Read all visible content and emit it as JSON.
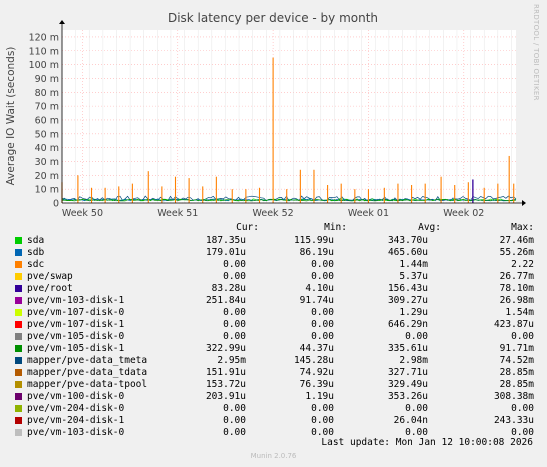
{
  "chart_data": {
    "type": "line",
    "title": "Disk latency per device - by month",
    "ylabel": "Average IO Wait (seconds)",
    "ylim": [
      0,
      0.125
    ],
    "y_ticks": [
      0,
      0.01,
      0.02,
      0.03,
      0.04,
      0.05,
      0.06,
      0.07,
      0.08,
      0.09,
      0.1,
      0.11,
      0.12
    ],
    "y_tick_labels": [
      "0",
      "10 m",
      "20 m",
      "30 m",
      "40 m",
      "50 m",
      "60 m",
      "70 m",
      "80 m",
      "90 m",
      "100 m",
      "110 m",
      "120 m"
    ],
    "x_ticks": [
      {
        "label": "Week 50",
        "pos": 0.045
      },
      {
        "label": "Week 51",
        "pos": 0.255
      },
      {
        "label": "Week 52",
        "pos": 0.465
      },
      {
        "label": "Week 01",
        "pos": 0.675
      },
      {
        "label": "Week 02",
        "pos": 0.885
      }
    ],
    "sdc_spikes": [
      {
        "pos": 0.0,
        "value": 0.015
      },
      {
        "pos": 0.035,
        "value": 0.02
      },
      {
        "pos": 0.065,
        "value": 0.011
      },
      {
        "pos": 0.095,
        "value": 0.011
      },
      {
        "pos": 0.125,
        "value": 0.012
      },
      {
        "pos": 0.155,
        "value": 0.014
      },
      {
        "pos": 0.19,
        "value": 0.023
      },
      {
        "pos": 0.22,
        "value": 0.012
      },
      {
        "pos": 0.25,
        "value": 0.019
      },
      {
        "pos": 0.28,
        "value": 0.018
      },
      {
        "pos": 0.31,
        "value": 0.012
      },
      {
        "pos": 0.34,
        "value": 0.019
      },
      {
        "pos": 0.375,
        "value": 0.01
      },
      {
        "pos": 0.405,
        "value": 0.01
      },
      {
        "pos": 0.435,
        "value": 0.011
      },
      {
        "pos": 0.465,
        "value": 0.105
      },
      {
        "pos": 0.495,
        "value": 0.01
      },
      {
        "pos": 0.525,
        "value": 0.024
      },
      {
        "pos": 0.555,
        "value": 0.024
      },
      {
        "pos": 0.585,
        "value": 0.013
      },
      {
        "pos": 0.615,
        "value": 0.014
      },
      {
        "pos": 0.645,
        "value": 0.01
      },
      {
        "pos": 0.675,
        "value": 0.01
      },
      {
        "pos": 0.71,
        "value": 0.011
      },
      {
        "pos": 0.74,
        "value": 0.014
      },
      {
        "pos": 0.77,
        "value": 0.013
      },
      {
        "pos": 0.8,
        "value": 0.014
      },
      {
        "pos": 0.835,
        "value": 0.019
      },
      {
        "pos": 0.865,
        "value": 0.013
      },
      {
        "pos": 0.895,
        "value": 0.015
      },
      {
        "pos": 0.93,
        "value": 0.011
      },
      {
        "pos": 0.96,
        "value": 0.014
      },
      {
        "pos": 0.985,
        "value": 0.034
      },
      {
        "pos": 0.995,
        "value": 0.014
      }
    ],
    "purple_spike": {
      "pos": 0.905,
      "value": 0.017
    },
    "legend_header": {
      "cur": "Cur:",
      "min": "Min:",
      "avg": "Avg:",
      "max": "Max:"
    },
    "series": [
      {
        "name": "sda",
        "color": "#00cc00",
        "cur": "187.35u",
        "min": "115.99u",
        "avg": "343.70u",
        "max": "27.46m"
      },
      {
        "name": "sdb",
        "color": "#0066b3",
        "cur": "179.01u",
        "min": "86.19u",
        "avg": "465.60u",
        "max": "55.26m"
      },
      {
        "name": "sdc",
        "color": "#ff8000",
        "cur": "0.00",
        "min": "0.00",
        "avg": "1.44m",
        "max": "2.22"
      },
      {
        "name": "pve/swap",
        "color": "#ffcc00",
        "cur": "0.00",
        "min": "0.00",
        "avg": "5.37u",
        "max": "26.77m"
      },
      {
        "name": "pve/root",
        "color": "#330099",
        "cur": "83.28u",
        "min": "4.10u",
        "avg": "156.43u",
        "max": "78.10m"
      },
      {
        "name": "pve/vm-103-disk-1",
        "color": "#990099",
        "cur": "251.84u",
        "min": "91.74u",
        "avg": "309.27u",
        "max": "26.98m"
      },
      {
        "name": "pve/vm-107-disk-0",
        "color": "#ccff00",
        "cur": "0.00",
        "min": "0.00",
        "avg": "1.29u",
        "max": "1.54m"
      },
      {
        "name": "pve/vm-107-disk-1",
        "color": "#ff0000",
        "cur": "0.00",
        "min": "0.00",
        "avg": "646.29n",
        "max": "423.87u"
      },
      {
        "name": "pve/vm-105-disk-0",
        "color": "#808080",
        "cur": "0.00",
        "min": "0.00",
        "avg": "0.00",
        "max": "0.00"
      },
      {
        "name": "pve/vm-105-disk-1",
        "color": "#008f00",
        "cur": "322.99u",
        "min": "44.37u",
        "avg": "335.61u",
        "max": "91.71m"
      },
      {
        "name": "mapper/pve-data_tmeta",
        "color": "#00487d",
        "cur": "2.95m",
        "min": "145.28u",
        "avg": "2.98m",
        "max": "74.52m"
      },
      {
        "name": "mapper/pve-data_tdata",
        "color": "#b35a00",
        "cur": "151.91u",
        "min": "74.92u",
        "avg": "327.71u",
        "max": "28.85m"
      },
      {
        "name": "mapper/pve-data-tpool",
        "color": "#b38f00",
        "cur": "153.72u",
        "min": "76.39u",
        "avg": "329.49u",
        "max": "28.85m"
      },
      {
        "name": "pve/vm-100-disk-0",
        "color": "#6b006b",
        "cur": "203.91u",
        "min": "1.19u",
        "avg": "353.26u",
        "max": "308.38m"
      },
      {
        "name": "pve/vm-204-disk-0",
        "color": "#8fb300",
        "cur": "0.00",
        "min": "0.00",
        "avg": "0.00",
        "max": "0.00"
      },
      {
        "name": "pve/vm-204-disk-1",
        "color": "#b30000",
        "cur": "0.00",
        "min": "0.00",
        "avg": "26.04n",
        "max": "243.33u"
      },
      {
        "name": "pve/vm-103-disk-0",
        "color": "#bebebe",
        "cur": "0.00",
        "min": "0.00",
        "avg": "0.00",
        "max": "0.00"
      }
    ]
  },
  "footer": {
    "last_update": "Last update: Mon Jan 12 10:00:08 2026",
    "munin_version": "Munin 2.0.76",
    "side_credit": "RRDTOOL / TOBI OETIKER"
  }
}
